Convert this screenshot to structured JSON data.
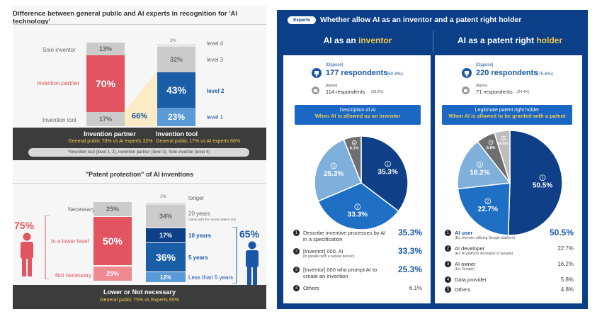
{
  "left": {
    "title": "Difference between general public and AI experts in recognition for 'AI technology'",
    "legend_labels": {
      "sole_inventor": "Sole inventor",
      "invention_partner": "Invention partner",
      "invention_tool": "Invention tool"
    },
    "public_bar": {
      "sole": "13%",
      "partner": "70%",
      "tool": "17%"
    },
    "expert_bar": {
      "l4": "2%",
      "l3": "32%",
      "l2": "43%",
      "l1": "23%"
    },
    "expert_levels": {
      "l4": "level 4",
      "l3": "level 3",
      "l2": "level 2",
      "l1": "level 1"
    },
    "connector_value": "66%",
    "band1": {
      "partner_title": "Invention partner",
      "partner_sub": "General public 70% vs AI experts 32%",
      "tool_title": "Invention tool",
      "tool_sub": "General public 17% vs AI experts 66%",
      "note": "*Invention tool (level 1, 2), Invention partner (level 3), Sole inventor (level 4)"
    },
    "title2": "\"Patent protection\" of AI inventions",
    "public2": {
      "necessary_label": "Necessary",
      "necessary": "25%",
      "lower_label": "In a lower level",
      "lower": "50%",
      "not_label": "Not necessary",
      "not": "25%"
    },
    "expert2": {
      "longer_val": "1%",
      "longer": "longer",
      "y20_val": "34%",
      "y20": "20 years",
      "y20_note": "(same with the current patent act)",
      "y10_val": "17%",
      "y10": "10 years",
      "y5_val": "36%",
      "y5": "5 years",
      "ylt5_val": "12%",
      "ylt5": "Less than 5 years"
    },
    "public_figure_pct": "75%",
    "expert_figure_pct": "65%",
    "band2": {
      "title": "Lower or Not necessary",
      "sub": "General public 75% vs Experts 65%"
    }
  },
  "right": {
    "tag": "Experts",
    "title": "Whether allow AI as an inventor and a patent right holder",
    "col1_title_prefix": "AI as an ",
    "col1_title_hl": "inventor",
    "col2_title_prefix": "AI as a patent right ",
    "col2_title_hl": "holder",
    "col1": {
      "oppose_label": "[Oppose]",
      "oppose_main": "177 respondents",
      "oppose_pct": "(60.8%)",
      "agree_label": "[Agree]",
      "agree_main": "114 respondents",
      "agree_pct": "(39.2%)",
      "bar_l1": "Description of AI",
      "bar_l2": "When AI is allowed as an inventor",
      "legend": [
        {
          "num": "1",
          "text": "Describe inventive processes by AI in a specification",
          "sub": "",
          "pct": "35.3%"
        },
        {
          "num": "2",
          "text": "[Inventor] 000, AI",
          "sub": "(in parallel with a natural person)",
          "pct": "33.3%"
        },
        {
          "num": "3",
          "text": "[Inventor] 000 who prompt AI to create an invention",
          "sub": "",
          "pct": "25.3%"
        },
        {
          "num": "4",
          "text": "Others",
          "sub": "",
          "pct": "6.1%"
        }
      ]
    },
    "col2": {
      "oppose_label": "[Oppose]",
      "oppose_main": "220 respondents",
      "oppose_pct": "(75.6%)",
      "agree_label": "[Agree]",
      "agree_main": "71 respondents",
      "agree_pct": "(24.4%)",
      "bar_l1": "Legitimate patent right holder",
      "bar_l2": "When AI is allowed to be granted with a patent",
      "legend": [
        {
          "num": "1",
          "text": "AI user",
          "sub": "(Ex: Inventor utilizing Google platform)",
          "pct": "50.5%"
        },
        {
          "num": "2",
          "text": "AI developer",
          "sub": "(Ex: AI platform developer of Google)",
          "pct": "22.7%"
        },
        {
          "num": "3",
          "text": "AI owner",
          "sub": "(Ex: Google)",
          "pct": "16.2%"
        },
        {
          "num": "4",
          "text": "Data provider",
          "sub": "",
          "pct": "5.8%"
        },
        {
          "num": "5",
          "text": "Others",
          "sub": "",
          "pct": "4.8%"
        }
      ]
    }
  },
  "chart_data": [
    {
      "type": "bar",
      "title": "Recognition for AI technology",
      "categories": [
        "General public",
        "AI experts"
      ],
      "series": [
        {
          "name": "Sole inventor",
          "values": [
            13,
            null
          ]
        },
        {
          "name": "Invention partner",
          "values": [
            70,
            null
          ]
        },
        {
          "name": "Invention tool",
          "values": [
            17,
            null
          ]
        },
        {
          "name": "level 4",
          "values": [
            null,
            2
          ]
        },
        {
          "name": "level 3",
          "values": [
            null,
            32
          ]
        },
        {
          "name": "level 2",
          "values": [
            null,
            43
          ]
        },
        {
          "name": "level 1",
          "values": [
            null,
            23
          ]
        }
      ]
    },
    {
      "type": "bar",
      "title": "Patent protection of AI inventions",
      "categories": [
        "General public",
        "Experts"
      ],
      "series": [
        {
          "name": "Necessary",
          "values": [
            25,
            null
          ]
        },
        {
          "name": "In a lower level",
          "values": [
            50,
            null
          ]
        },
        {
          "name": "Not necessary",
          "values": [
            25,
            null
          ]
        },
        {
          "name": "longer",
          "values": [
            null,
            1
          ]
        },
        {
          "name": "20 years",
          "values": [
            null,
            34
          ]
        },
        {
          "name": "10 years",
          "values": [
            null,
            17
          ]
        },
        {
          "name": "5 years",
          "values": [
            null,
            36
          ]
        },
        {
          "name": "Less than 5 years",
          "values": [
            null,
            12
          ]
        }
      ]
    },
    {
      "type": "pie",
      "title": "Description of AI when AI is allowed as an inventor",
      "categories": [
        "Describe inventive processes by AI in a specification",
        "[Inventor] 000, AI",
        "[Inventor] 000 who prompt AI to create an invention",
        "Others"
      ],
      "values": [
        35.3,
        33.3,
        25.3,
        6.1
      ],
      "slice_labels": [
        "35.3%",
        "33.3%",
        "25.3%",
        "6.1%"
      ],
      "colors": [
        "#0f3f86",
        "#1f6fc5",
        "#7fb0dc",
        "#6f6f6f"
      ]
    },
    {
      "type": "pie",
      "title": "Legitimate patent right holder when AI is allowed to be granted with a patent",
      "categories": [
        "AI user",
        "AI developer",
        "AI owner",
        "Data provider",
        "Others"
      ],
      "values": [
        50.5,
        22.7,
        16.2,
        5.8,
        4.8
      ],
      "slice_labels": [
        "50.5%",
        "22.7%",
        "16.2%",
        "5.8%",
        "4.8%"
      ],
      "colors": [
        "#0f3f86",
        "#1f6fc5",
        "#7fb0dc",
        "#6f6f6f",
        "#bdbdbd"
      ]
    }
  ]
}
